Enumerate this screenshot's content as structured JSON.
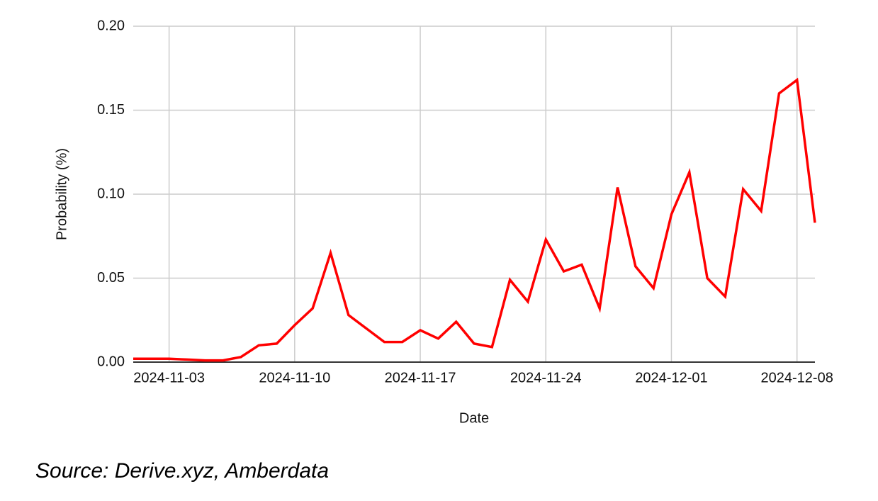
{
  "chart_data": {
    "type": "line",
    "x_label": "Date",
    "y_label": "Probability (%)",
    "x": [
      "2024-11-01",
      "2024-11-02",
      "2024-11-03",
      "2024-11-04",
      "2024-11-05",
      "2024-11-06",
      "2024-11-07",
      "2024-11-08",
      "2024-11-09",
      "2024-11-10",
      "2024-11-11",
      "2024-11-12",
      "2024-11-13",
      "2024-11-14",
      "2024-11-15",
      "2024-11-16",
      "2024-11-17",
      "2024-11-18",
      "2024-11-19",
      "2024-11-20",
      "2024-11-21",
      "2024-11-22",
      "2024-11-23",
      "2024-11-24",
      "2024-11-25",
      "2024-11-26",
      "2024-11-27",
      "2024-11-28",
      "2024-11-29",
      "2024-11-30",
      "2024-12-01",
      "2024-12-02",
      "2024-12-03",
      "2024-12-04",
      "2024-12-05",
      "2024-12-06",
      "2024-12-07",
      "2024-12-08",
      "2024-12-09"
    ],
    "values": [
      0.002,
      0.002,
      0.002,
      0.0015,
      0.001,
      0.001,
      0.003,
      0.01,
      0.011,
      0.022,
      0.032,
      0.065,
      0.028,
      0.02,
      0.012,
      0.012,
      0.019,
      0.014,
      0.024,
      0.011,
      0.009,
      0.049,
      0.036,
      0.073,
      0.054,
      0.058,
      0.032,
      0.104,
      0.057,
      0.044,
      0.088,
      0.113,
      0.05,
      0.039,
      0.103,
      0.09,
      0.16,
      0.168,
      0.083
    ],
    "color": "#ff0000",
    "xlim": [
      "2024-11-01",
      "2024-12-09"
    ],
    "xticks": [
      "2024-11-03",
      "2024-11-10",
      "2024-11-17",
      "2024-11-24",
      "2024-12-01",
      "2024-12-08"
    ],
    "ylim": [
      0,
      0.2
    ],
    "yticks": [
      {
        "value": 0,
        "label": "0.00"
      },
      {
        "value": 0.05,
        "label": "0.05"
      },
      {
        "value": 0.1,
        "label": "0.10"
      },
      {
        "value": 0.15,
        "label": "0.15"
      },
      {
        "value": 0.2,
        "label": "0.20"
      }
    ],
    "grid": true
  },
  "source": "Source: Derive.xyz, Amberdata"
}
